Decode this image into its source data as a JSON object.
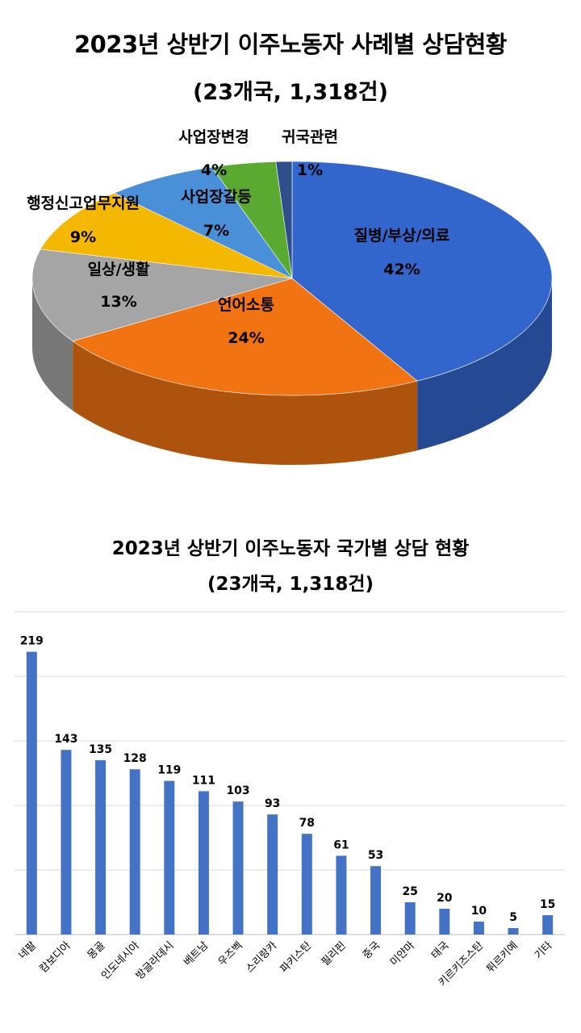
{
  "chart_data": [
    {
      "type": "pie",
      "title": "2023년 상반기 이주노동자 사례별 상담현황",
      "subtitle": "(23개국, 1,318건)",
      "slices": [
        {
          "label": "질병/부상/의료",
          "value": 42,
          "display": "42%",
          "color": "#3366cc"
        },
        {
          "label": "언어소통",
          "value": 24,
          "display": "24%",
          "color": "#f27312"
        },
        {
          "label": "일상/생활",
          "value": 13,
          "display": "13%",
          "color": "#a5a5a5"
        },
        {
          "label": "행정신고업무지원",
          "value": 9,
          "display": "9%",
          "color": "#f5b800"
        },
        {
          "label": "사업장갈등",
          "value": 7,
          "display": "7%",
          "color": "#4a90d9"
        },
        {
          "label": "사업장변경",
          "value": 4,
          "display": "4%",
          "color": "#5aaa32"
        },
        {
          "label": "귀국관련",
          "value": 1,
          "display": "1%",
          "color": "#2f4f8c"
        }
      ]
    },
    {
      "type": "bar",
      "title": "2023년 상반기 이주노동자 국가별 상담 현황",
      "subtitle": "(23개국, 1,318건)",
      "categories": [
        "네팔",
        "캄보디아",
        "몽골",
        "인도네시아",
        "방글라데시",
        "베트남",
        "우즈벡",
        "스리랑카",
        "파키스탄",
        "필리핀",
        "중국",
        "미얀마",
        "태국",
        "키르키즈스탄",
        "튀르키예",
        "기타"
      ],
      "values": [
        219,
        143,
        135,
        128,
        119,
        111,
        103,
        93,
        78,
        61,
        53,
        25,
        20,
        10,
        5,
        15
      ],
      "ylim": [
        0,
        250
      ],
      "grid": true,
      "color": "#4472c4"
    }
  ]
}
